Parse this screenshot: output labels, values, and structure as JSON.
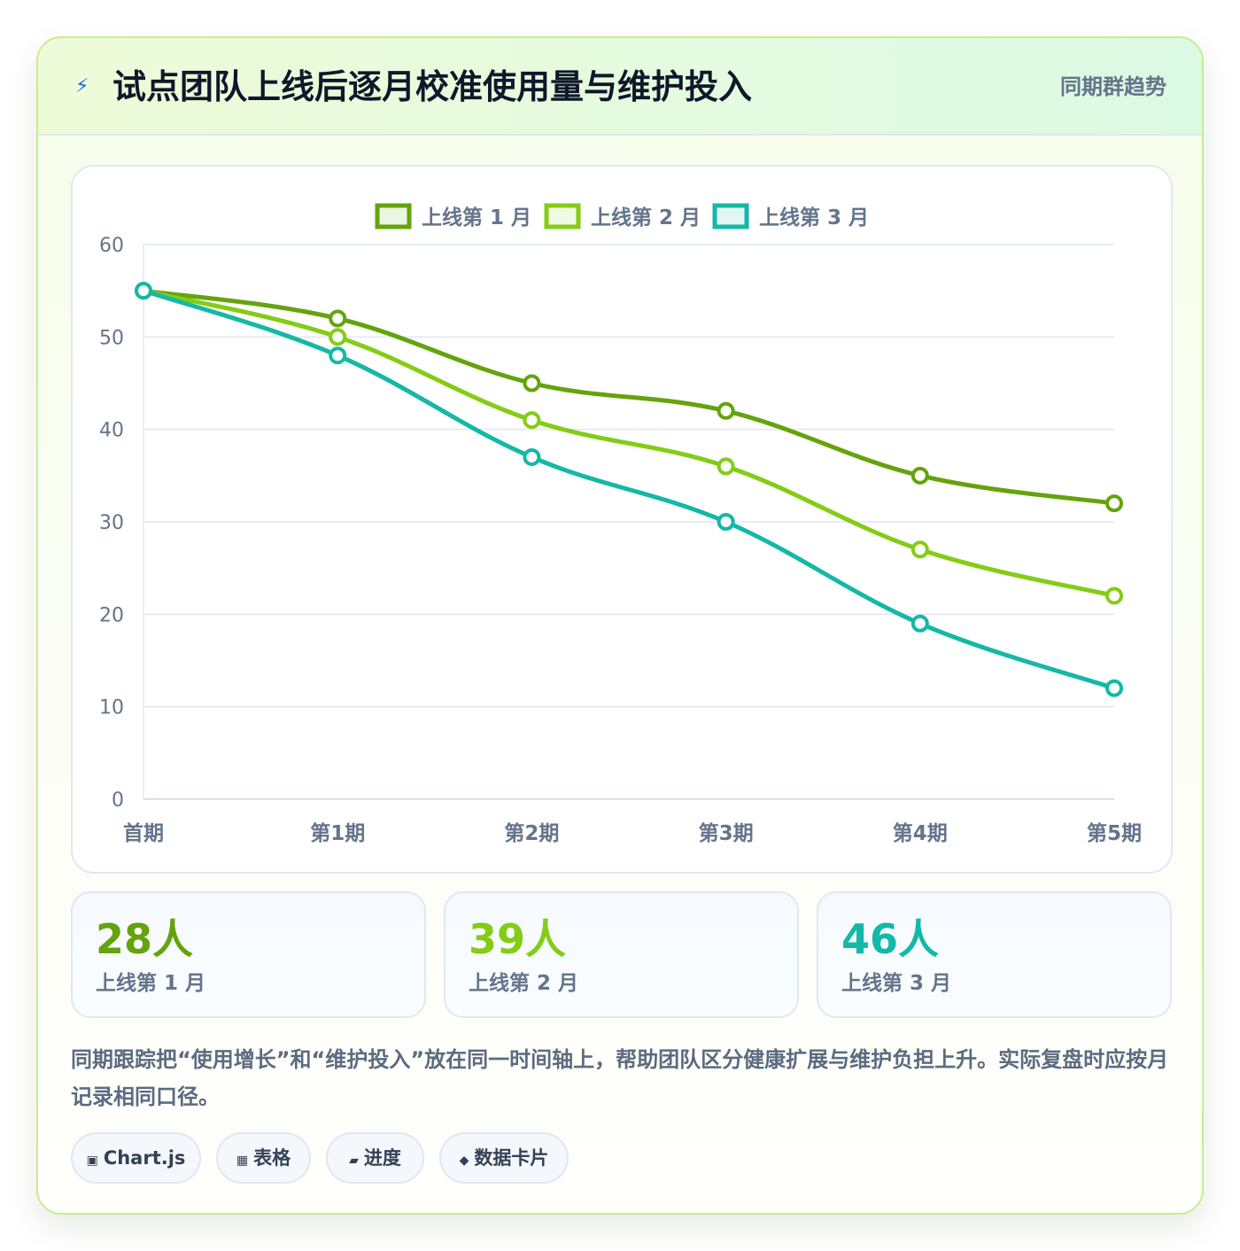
{
  "header": {
    "icon": "lightning-icon",
    "title": "试点团队上线后逐月校准使用量与维护投入",
    "badge": "同期群趋势"
  },
  "chart_data": {
    "type": "line",
    "title": "",
    "xlabel": "",
    "ylabel": "",
    "categories": [
      "首期",
      "第1期",
      "第2期",
      "第3期",
      "第4期",
      "第5期"
    ],
    "yticks": [
      "0",
      "10",
      "20",
      "30",
      "40",
      "50",
      "60"
    ],
    "ylim": [
      0,
      60
    ],
    "grid": true,
    "legend_position": "top-center",
    "series": [
      {
        "name": "上线第 1 月",
        "color": "#65a30d",
        "values": [
          55,
          52,
          45,
          42,
          35,
          32
        ]
      },
      {
        "name": "上线第 2 月",
        "color": "#84cc16",
        "values": [
          55,
          50,
          41,
          36,
          27,
          22
        ]
      },
      {
        "name": "上线第 3 月",
        "color": "#14b8a6",
        "values": [
          55,
          48,
          37,
          30,
          19,
          12
        ]
      }
    ]
  },
  "stats": [
    {
      "value": "28人",
      "label": "上线第 1 月",
      "color": "#65a30d"
    },
    {
      "value": "39人",
      "label": "上线第 2 月",
      "color": "#84cc16"
    },
    {
      "value": "46人",
      "label": "上线第 3 月",
      "color": "#14b8a6"
    }
  ],
  "description": "同期跟踪把“使用增长”和“维护投入”放在同一时间轴上，帮助团队区分健康扩展与维护负担上升。实际复盘时应按月记录相同口径。",
  "tags": [
    {
      "icon": "▣",
      "icon_name": "chart-icon",
      "label": "Chart.js"
    },
    {
      "icon": "▦",
      "icon_name": "table-icon",
      "label": "表格"
    },
    {
      "icon": "▰",
      "icon_name": "progress-icon",
      "label": "进度"
    },
    {
      "icon": "◆",
      "icon_name": "data-card-icon",
      "label": "数据卡片"
    }
  ]
}
